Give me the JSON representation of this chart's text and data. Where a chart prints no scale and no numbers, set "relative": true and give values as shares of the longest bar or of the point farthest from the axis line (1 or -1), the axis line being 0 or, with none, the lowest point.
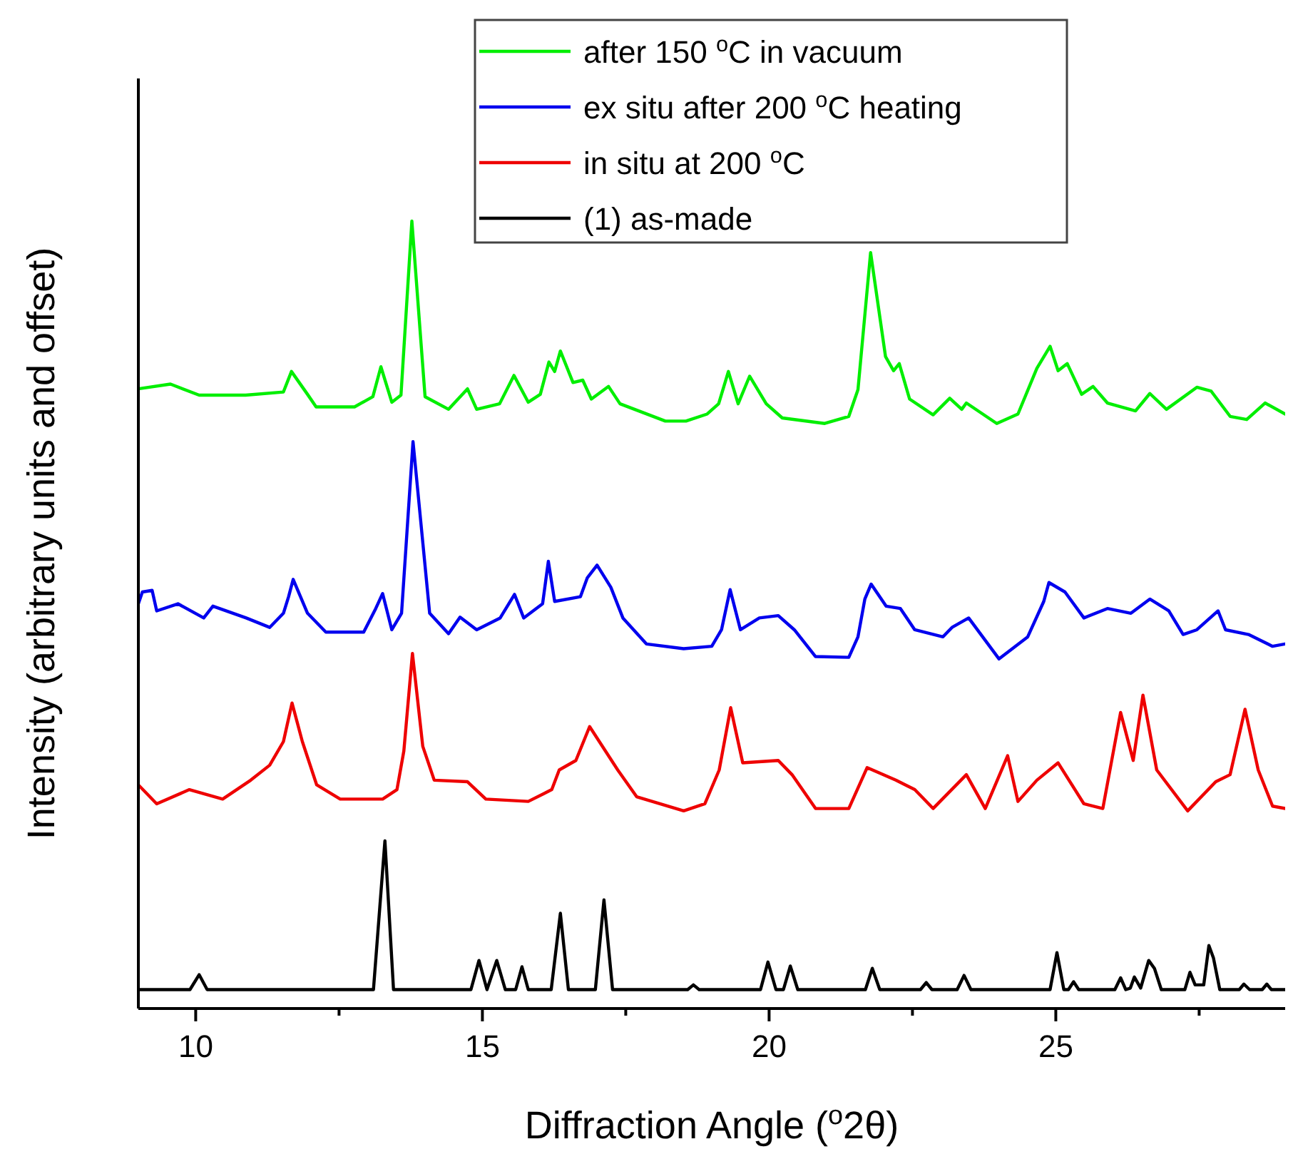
{
  "chart_data": {
    "type": "line",
    "relative": true,
    "xlabel": "Diffraction Angle ($^{o}$2θ)",
    "ylabel": "Intensity (arbitrary units and offset)",
    "xlim": [
      9,
      29
    ],
    "xticks": [
      10,
      {
        "value": 12.5,
        "label": null
      },
      15,
      {
        "value": 17.5,
        "label": null
      },
      20,
      {
        "value": 22.5,
        "label": null
      },
      25,
      {
        "value": 27.5,
        "label": null
      }
    ],
    "legend": "top",
    "grid": false,
    "marker": "none",
    "line_style": "solid",
    "series": [
      {
        "name": "after 150 $^{o}$C in vacuum",
        "color": "#00ee00",
        "x": [
          9.0,
          9.56,
          10.06,
          10.87,
          11.53,
          11.67,
          11.95,
          12.1,
          12.77,
          13.09,
          13.23,
          13.42,
          13.58,
          13.77,
          14.0,
          14.41,
          14.74,
          14.9,
          15.3,
          15.55,
          15.8,
          16.01,
          16.16,
          16.26,
          16.36,
          16.58,
          16.75,
          16.9,
          17.2,
          17.4,
          18.19,
          18.55,
          18.92,
          19.12,
          19.29,
          19.46,
          19.66,
          19.95,
          20.23,
          20.97,
          21.39,
          21.55,
          21.77,
          22.03,
          22.17,
          22.27,
          22.45,
          22.86,
          23.15,
          23.36,
          23.44,
          23.97,
          24.34,
          24.67,
          24.9,
          25.04,
          25.2,
          25.45,
          25.65,
          25.9,
          26.39,
          26.64,
          26.93,
          27.46,
          27.71,
          28.04,
          28.33,
          28.65,
          29.0
        ],
        "values": [
          0.787,
          0.793,
          0.779,
          0.779,
          0.783,
          0.809,
          0.78,
          0.764,
          0.764,
          0.777,
          0.815,
          0.77,
          0.779,
          1,
          0.777,
          0.761,
          0.787,
          0.761,
          0.768,
          0.804,
          0.77,
          0.78,
          0.821,
          0.809,
          0.835,
          0.795,
          0.798,
          0.774,
          0.79,
          0.768,
          0.746,
          0.746,
          0.755,
          0.768,
          0.809,
          0.768,
          0.803,
          0.768,
          0.75,
          0.743,
          0.752,
          0.786,
          0.96,
          0.828,
          0.81,
          0.819,
          0.774,
          0.754,
          0.775,
          0.761,
          0.769,
          0.743,
          0.755,
          0.813,
          0.841,
          0.81,
          0.819,
          0.78,
          0.79,
          0.769,
          0.759,
          0.781,
          0.761,
          0.789,
          0.784,
          0.752,
          0.748,
          0.769,
          0.755
        ]
      },
      {
        "name": "ex situ after 200 $^{o}$C heating",
        "color": "#0000ee",
        "x": [
          9.0,
          9.07,
          9.24,
          9.32,
          9.69,
          10.14,
          10.3,
          10.88,
          11.29,
          11.53,
          11.62,
          11.7,
          11.95,
          12.27,
          12.93,
          13.14,
          13.26,
          13.42,
          13.59,
          13.79,
          14.08,
          14.41,
          14.61,
          14.9,
          15.31,
          15.56,
          15.72,
          16.05,
          16.15,
          16.26,
          16.71,
          16.83,
          17.0,
          17.24,
          17.45,
          17.86,
          18.51,
          19.0,
          19.17,
          19.32,
          19.5,
          19.83,
          20.16,
          20.44,
          20.81,
          21.39,
          21.55,
          21.67,
          21.78,
          22.04,
          22.29,
          22.54,
          23.03,
          23.19,
          23.48,
          24.01,
          24.51,
          24.79,
          24.88,
          25.16,
          25.49,
          25.9,
          26.31,
          26.64,
          26.97,
          27.22,
          27.46,
          27.83,
          27.96,
          28.36,
          28.78,
          29.0
        ],
        "values": [
          0.514,
          0.529,
          0.531,
          0.505,
          0.514,
          0.496,
          0.511,
          0.496,
          0.484,
          0.502,
          0.523,
          0.545,
          0.502,
          0.478,
          0.478,
          0.508,
          0.527,
          0.481,
          0.502,
          0.72,
          0.502,
          0.476,
          0.497,
          0.481,
          0.496,
          0.526,
          0.496,
          0.514,
          0.568,
          0.517,
          0.523,
          0.547,
          0.563,
          0.535,
          0.496,
          0.463,
          0.457,
          0.46,
          0.481,
          0.532,
          0.481,
          0.496,
          0.499,
          0.481,
          0.447,
          0.446,
          0.472,
          0.52,
          0.539,
          0.511,
          0.508,
          0.481,
          0.472,
          0.484,
          0.496,
          0.444,
          0.472,
          0.517,
          0.541,
          0.529,
          0.496,
          0.508,
          0.502,
          0.52,
          0.505,
          0.475,
          0.481,
          0.505,
          0.481,
          0.475,
          0.46,
          0.463
        ]
      },
      {
        "name": "in situ at 200 $^{o}$C",
        "color": "#ee0000",
        "x": [
          9.0,
          9.32,
          9.89,
          10.47,
          10.96,
          11.29,
          11.53,
          11.68,
          11.86,
          12.11,
          12.52,
          13.26,
          13.51,
          13.63,
          13.78,
          13.96,
          14.16,
          14.74,
          15.06,
          15.8,
          16.21,
          16.34,
          16.63,
          16.87,
          17.36,
          17.69,
          18.51,
          18.88,
          19.13,
          19.33,
          19.54,
          20.16,
          20.4,
          20.81,
          21.39,
          21.71,
          22.21,
          22.54,
          22.86,
          23.44,
          23.77,
          24.16,
          24.34,
          24.67,
          25.04,
          25.49,
          25.82,
          26.13,
          26.35,
          26.52,
          26.76,
          27.3,
          27.79,
          28.04,
          28.3,
          28.53,
          28.78,
          29.0
        ],
        "values": [
          0.284,
          0.26,
          0.278,
          0.266,
          0.29,
          0.309,
          0.339,
          0.388,
          0.339,
          0.284,
          0.266,
          0.266,
          0.278,
          0.327,
          0.451,
          0.333,
          0.29,
          0.288,
          0.266,
          0.263,
          0.278,
          0.303,
          0.315,
          0.358,
          0.303,
          0.269,
          0.251,
          0.26,
          0.303,
          0.382,
          0.312,
          0.315,
          0.297,
          0.254,
          0.254,
          0.306,
          0.29,
          0.278,
          0.254,
          0.297,
          0.254,
          0.321,
          0.263,
          0.29,
          0.312,
          0.26,
          0.254,
          0.376,
          0.315,
          0.398,
          0.303,
          0.251,
          0.288,
          0.297,
          0.38,
          0.303,
          0.257,
          0.254
        ]
      },
      {
        "name": "(1) as-made",
        "color": "#000000",
        "x": [
          9.0,
          9.9,
          10.06,
          10.2,
          13.1,
          13.3,
          13.45,
          14.8,
          14.94,
          15.08,
          15.25,
          15.4,
          15.58,
          15.69,
          15.8,
          16.2,
          16.36,
          16.5,
          16.97,
          17.12,
          17.27,
          18.58,
          18.68,
          18.78,
          19.85,
          19.98,
          20.12,
          20.25,
          20.37,
          20.5,
          21.68,
          21.8,
          21.93,
          22.64,
          22.74,
          22.84,
          23.28,
          23.4,
          23.52,
          24.9,
          25.02,
          25.14,
          25.22,
          25.31,
          25.4,
          26.03,
          26.13,
          26.22,
          26.3,
          26.37,
          26.48,
          26.62,
          26.72,
          26.84,
          27.25,
          27.34,
          27.43,
          27.58,
          27.67,
          27.75,
          27.86,
          28.2,
          28.28,
          28.38,
          28.6,
          28.68,
          28.76,
          29.0
        ],
        "values": [
          0.024,
          0.024,
          0.043,
          0.024,
          0.024,
          0.213,
          0.024,
          0.024,
          0.061,
          0.024,
          0.061,
          0.024,
          0.024,
          0.053,
          0.024,
          0.024,
          0.121,
          0.024,
          0.024,
          0.138,
          0.024,
          0.024,
          0.03,
          0.024,
          0.024,
          0.059,
          0.024,
          0.024,
          0.054,
          0.024,
          0.024,
          0.051,
          0.024,
          0.024,
          0.033,
          0.024,
          0.024,
          0.042,
          0.024,
          0.024,
          0.071,
          0.024,
          0.024,
          0.034,
          0.024,
          0.024,
          0.039,
          0.024,
          0.026,
          0.04,
          0.026,
          0.061,
          0.051,
          0.024,
          0.024,
          0.046,
          0.03,
          0.03,
          0.08,
          0.064,
          0.024,
          0.024,
          0.031,
          0.024,
          0.024,
          0.031,
          0.024,
          0.024
        ]
      }
    ]
  }
}
